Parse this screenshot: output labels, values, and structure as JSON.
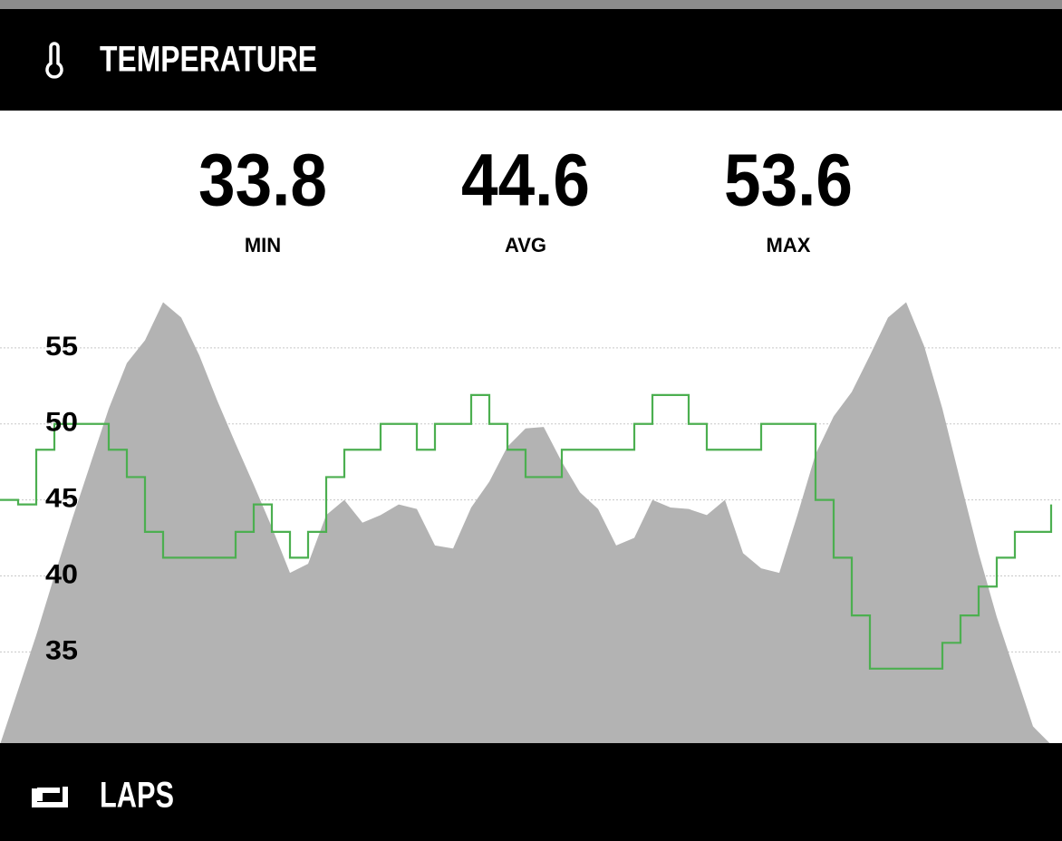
{
  "header": {
    "title": "TEMPERATURE"
  },
  "stats": [
    {
      "value": 33.8,
      "label": "MIN"
    },
    {
      "value": 44.6,
      "label": "AVG"
    },
    {
      "value": 53.6,
      "label": "MAX"
    }
  ],
  "chart_data": {
    "type": "line",
    "ylim": [
      29,
      60
    ],
    "yticks": [
      35,
      40,
      45,
      50,
      55
    ],
    "grid": true,
    "series": [
      {
        "kind": "area",
        "color": "#b3b3b3",
        "values": [
          28.9,
          32.5,
          36.1,
          40,
          43.8,
          47.4,
          51,
          54,
          55.5,
          58,
          57,
          54.5,
          51.5,
          48.7,
          46,
          43.2,
          40.2,
          40.8,
          44,
          45,
          43.5,
          44,
          44.7,
          44.4,
          42,
          41.8,
          44.5,
          46.2,
          48.5,
          49.7,
          49.8,
          47.5,
          45.5,
          44.4,
          42,
          42.5,
          45,
          44.5,
          44.4,
          44,
          45,
          41.5,
          40.5,
          40.2,
          44,
          48,
          50.5,
          52.1,
          54.5,
          57,
          58,
          55.1,
          51,
          46.2,
          41.5,
          37.3,
          33.7,
          30.1,
          28.9
        ]
      },
      {
        "kind": "step",
        "color": "#4caf50",
        "values": [
          45,
          44.7,
          48.3,
          50,
          50,
          50,
          48.3,
          46.5,
          42.9,
          41.2,
          41.2,
          41.2,
          41.2,
          42.9,
          44.7,
          42.9,
          41.2,
          42.9,
          46.5,
          48.3,
          48.3,
          50,
          50,
          48.3,
          50,
          50,
          51.9,
          50,
          48.3,
          46.5,
          46.5,
          48.3,
          48.3,
          48.3,
          48.3,
          50,
          51.9,
          51.9,
          50,
          48.3,
          48.3,
          48.3,
          50,
          50,
          50,
          45,
          41.2,
          37.4,
          33.9,
          33.9,
          33.9,
          33.9,
          35.6,
          37.4,
          39.3,
          41.2,
          42.9,
          42.9,
          44.7
        ]
      }
    ]
  },
  "footer": {
    "title": "LAPS"
  }
}
